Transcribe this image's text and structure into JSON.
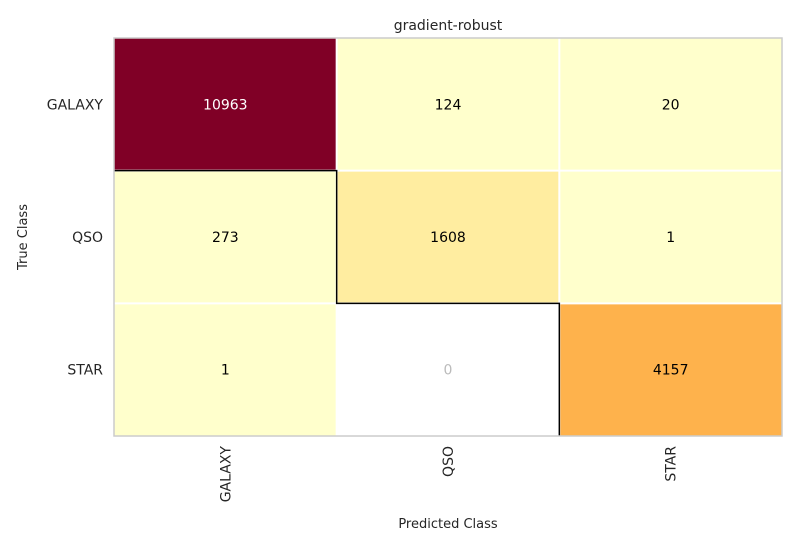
{
  "chart_data": {
    "type": "heatmap",
    "title": "gradient-robust",
    "xlabel": "Predicted Class",
    "ylabel": "True Class",
    "x_categories": [
      "GALAXY",
      "QSO",
      "STAR"
    ],
    "y_categories": [
      "GALAXY",
      "QSO",
      "STAR"
    ],
    "values": [
      [
        10963,
        124,
        20
      ],
      [
        273,
        1608,
        1
      ],
      [
        1,
        0,
        4157
      ]
    ],
    "colors": {
      "cells": [
        [
          "#800026",
          "#ffffcc",
          "#ffffcc"
        ],
        [
          "#ffffcc",
          "#ffeda0",
          "#ffffcc"
        ],
        [
          "#ffffcc",
          "#ffffff",
          "#feb24c"
        ]
      ],
      "cell_text": [
        [
          "#ffffff",
          "#000000",
          "#000000"
        ],
        [
          "#000000",
          "#000000",
          "#000000"
        ],
        [
          "#000000",
          "#bbbbbb",
          "#000000"
        ]
      ],
      "diagonal_outline": "#000000",
      "grid_line": "#ffffff",
      "plot_border": "#cccccc",
      "text": "#262626"
    }
  }
}
